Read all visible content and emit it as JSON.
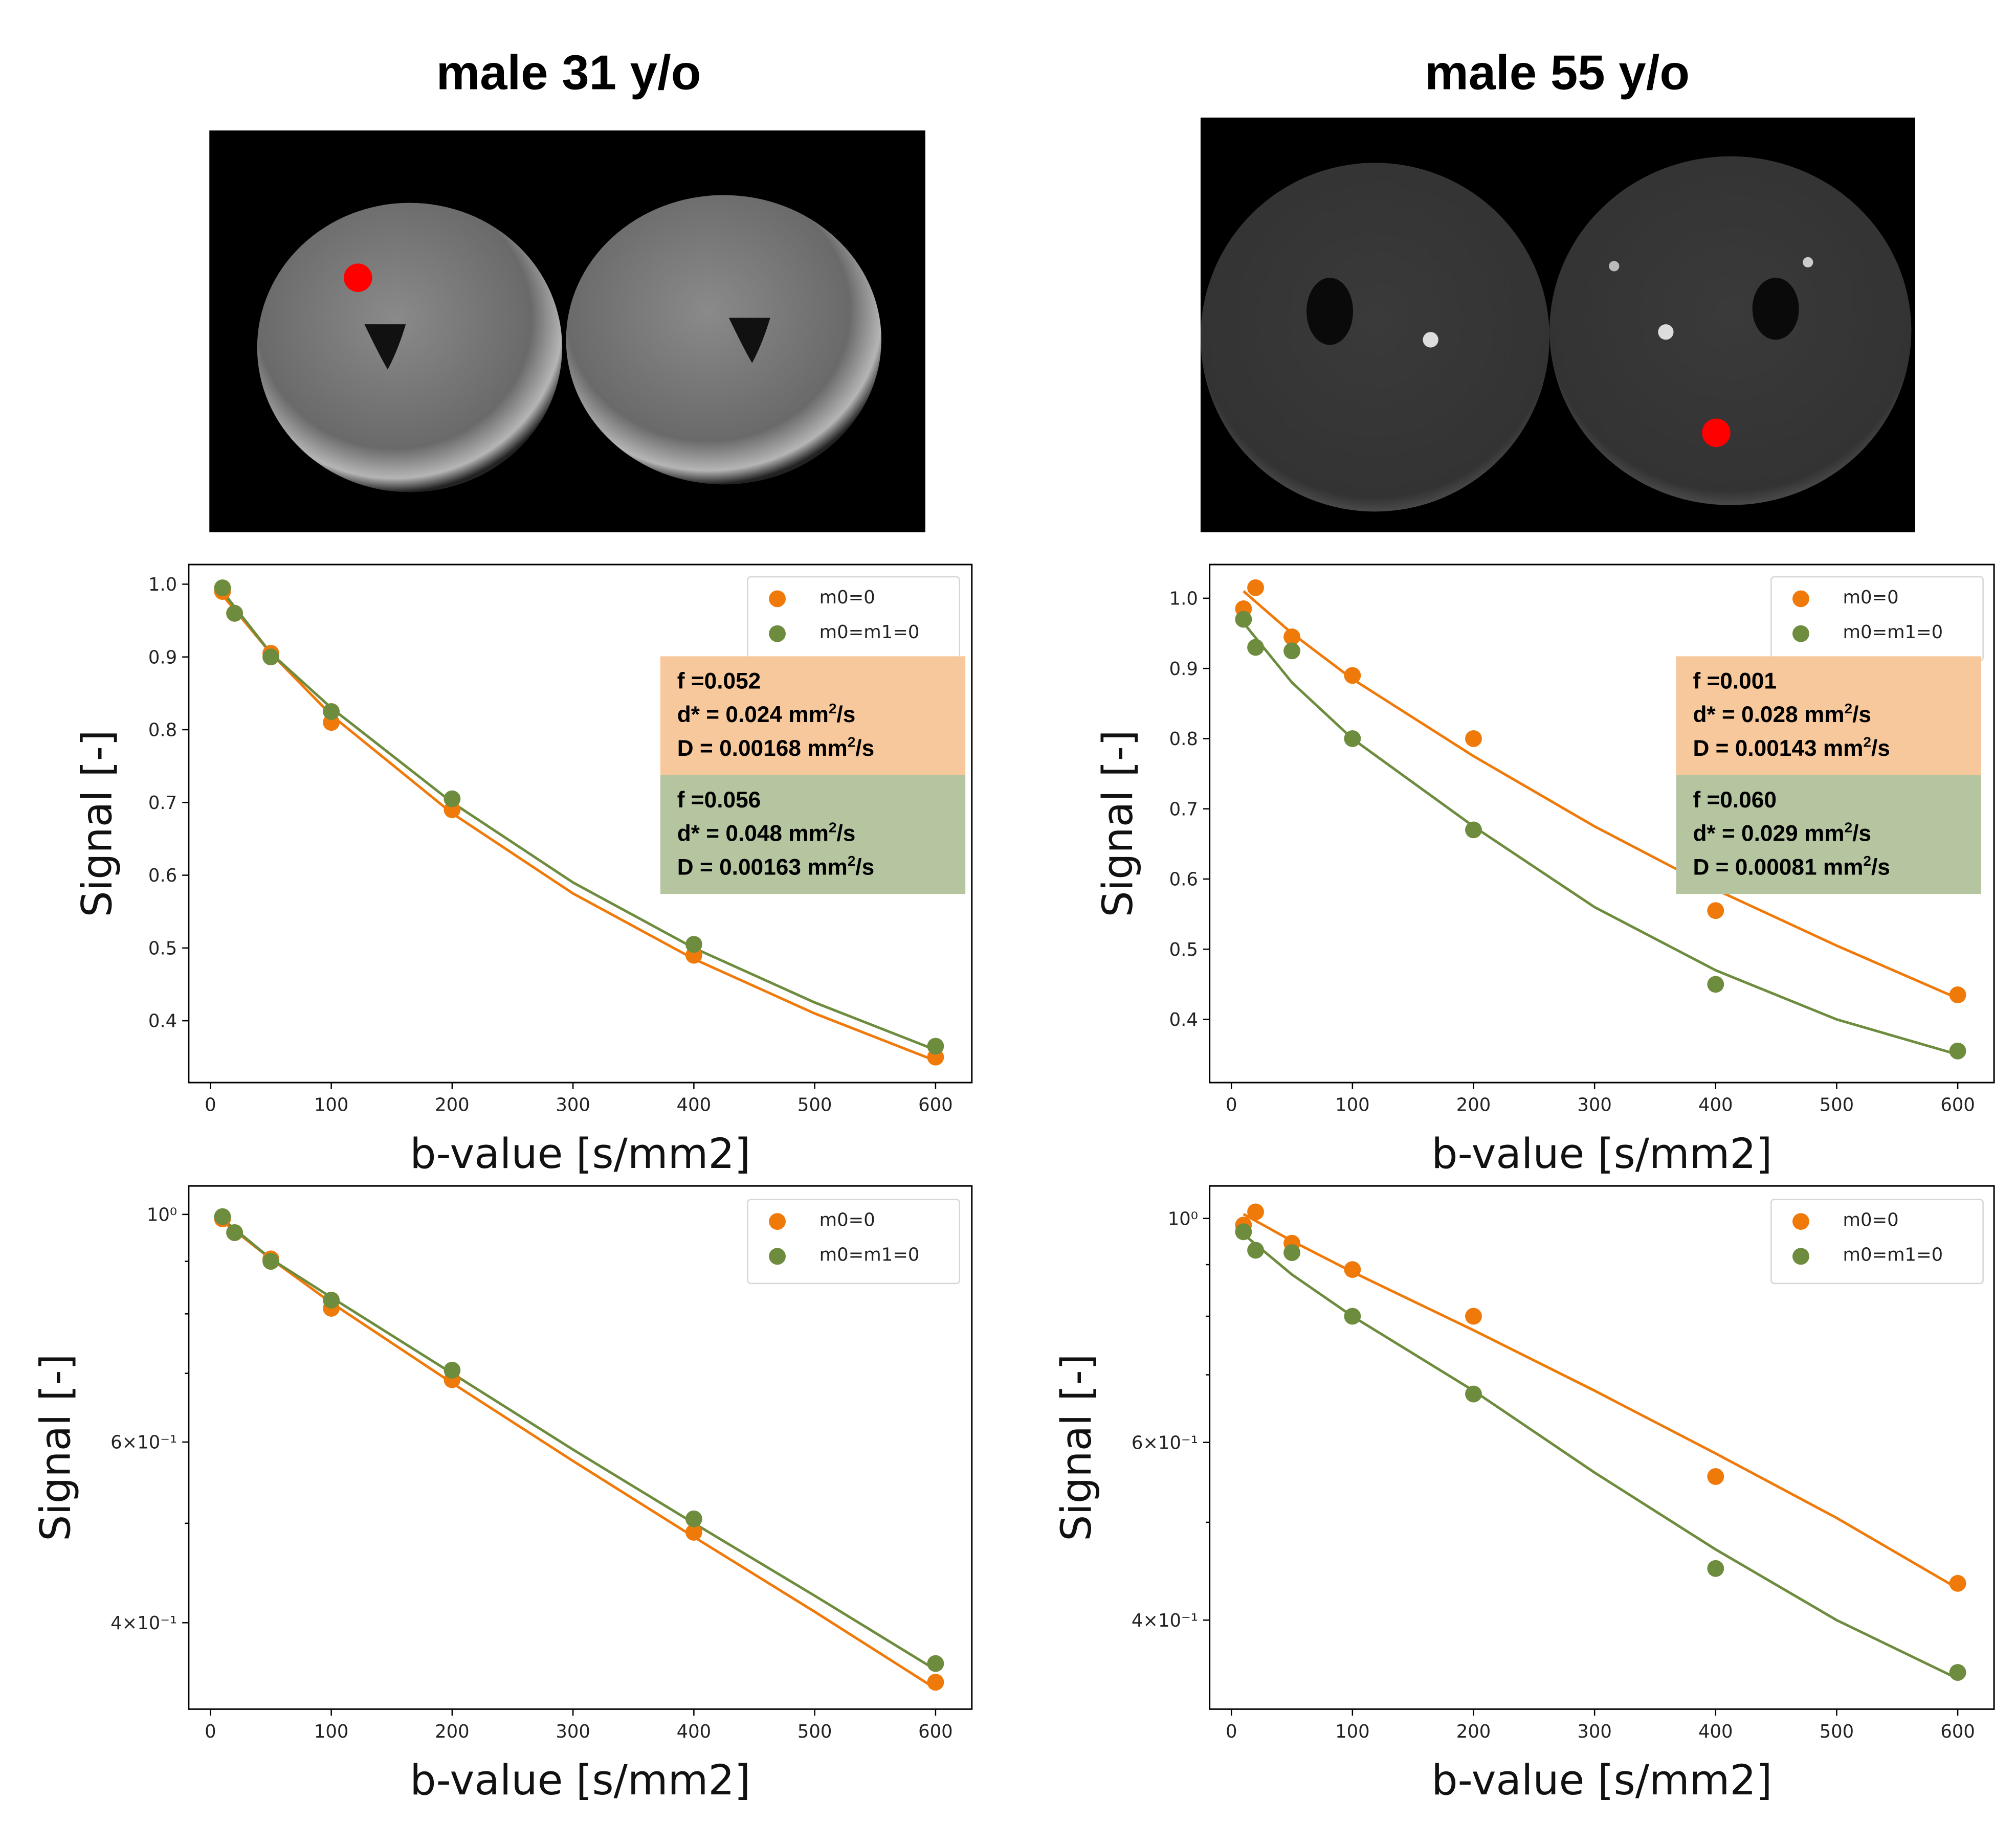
{
  "panels": [
    {
      "title": "male 31 y/o"
    },
    {
      "title": "male 55 y/o"
    }
  ],
  "legend": {
    "orange": "m0=0",
    "green": "m0=m1=0"
  },
  "colors": {
    "orange": "#ef7a0a",
    "green": "#6d8c3e",
    "orange_box": "#f7c89b",
    "green_box": "#b5c59f",
    "roi": "#ff0000"
  },
  "annotations": [
    {
      "orange": {
        "f": "f =0.052",
        "dstar": "d* = 0.024 mm",
        "D": "D = 0.00168 mm"
      },
      "green": {
        "f": "f =0.056",
        "dstar": "d* = 0.048 mm",
        "D": "D = 0.00163 mm"
      }
    },
    {
      "orange": {
        "f": "f =0.001",
        "dstar": "d* = 0.028 mm",
        "D": "D = 0.00143 mm"
      },
      "green": {
        "f": "f =0.060",
        "dstar": "d* = 0.029 mm",
        "D": "D = 0.00081 mm"
      }
    }
  ],
  "unit_sup": "2",
  "unit_tail": "/s",
  "chart_data": [
    {
      "type": "scatter",
      "scale": "linear",
      "xlabel": "b-value [s/mm2]",
      "ylabel": "Signal [-]",
      "xlim": [
        -18,
        630
      ],
      "ylim": [
        0.315,
        1.027
      ],
      "xticks": [
        0,
        100,
        200,
        300,
        400,
        500,
        600
      ],
      "yticks": [
        0.4,
        0.5,
        0.6,
        0.7,
        0.8,
        0.9,
        1.0
      ],
      "yticklabels": [
        "0.4",
        "0.5",
        "0.6",
        "0.7",
        "0.8",
        "0.9",
        "1.0"
      ],
      "legend": "top-right",
      "x": [
        10,
        20,
        50,
        100,
        200,
        400,
        600
      ],
      "series": [
        {
          "name": "m0=0",
          "color": "orange",
          "values": [
            0.99,
            0.96,
            0.905,
            0.81,
            0.69,
            0.49,
            0.35
          ],
          "fit_b": [
            10,
            50,
            100,
            200,
            300,
            400,
            500,
            600
          ],
          "fit": [
            0.985,
            0.905,
            0.82,
            0.685,
            0.575,
            0.485,
            0.41,
            0.345
          ]
        },
        {
          "name": "m0=m1=0",
          "color": "green",
          "values": [
            0.995,
            0.96,
            0.9,
            0.825,
            0.705,
            0.505,
            0.365
          ],
          "fit_b": [
            10,
            50,
            100,
            200,
            300,
            400,
            500,
            600
          ],
          "fit": [
            0.99,
            0.905,
            0.83,
            0.7,
            0.59,
            0.5,
            0.425,
            0.36
          ]
        }
      ]
    },
    {
      "type": "scatter",
      "scale": "linear",
      "xlabel": "b-value [s/mm2]",
      "ylabel": "Signal [-]",
      "xlim": [
        -18,
        630
      ],
      "ylim": [
        0.31,
        1.048
      ],
      "xticks": [
        0,
        100,
        200,
        300,
        400,
        500,
        600
      ],
      "yticks": [
        0.4,
        0.5,
        0.6,
        0.7,
        0.8,
        0.9,
        1.0
      ],
      "yticklabels": [
        "0.4",
        "0.5",
        "0.6",
        "0.7",
        "0.8",
        "0.9",
        "1.0"
      ],
      "legend": "top-right",
      "x": [
        10,
        20,
        50,
        100,
        200,
        400,
        600
      ],
      "series": [
        {
          "name": "m0=0",
          "color": "orange",
          "values": [
            0.985,
            1.015,
            0.945,
            0.89,
            0.8,
            0.555,
            0.435
          ],
          "fit_b": [
            10,
            50,
            100,
            200,
            300,
            400,
            500,
            600
          ],
          "fit": [
            1.01,
            0.95,
            0.885,
            0.775,
            0.675,
            0.585,
            0.505,
            0.43
          ]
        },
        {
          "name": "m0=m1=0",
          "color": "green",
          "values": [
            0.97,
            0.93,
            0.925,
            0.8,
            0.67,
            0.45,
            0.355
          ],
          "fit_b": [
            10,
            50,
            100,
            200,
            300,
            400,
            500,
            600
          ],
          "fit": [
            0.965,
            0.88,
            0.8,
            0.675,
            0.56,
            0.47,
            0.4,
            0.35
          ]
        }
      ]
    },
    {
      "type": "scatter",
      "scale": "log",
      "xlabel": "b-value [s/mm2]",
      "ylabel": "Signal [-]",
      "xlim": [
        -18,
        630
      ],
      "ylim": [
        0.3295,
        1.066
      ],
      "xticks": [
        0,
        100,
        200,
        300,
        400,
        500,
        600
      ],
      "yticks": [
        1.0,
        0.6,
        0.4
      ],
      "yticklabels": [
        "10⁰",
        "6×10⁻¹",
        "4×10⁻¹"
      ],
      "yminor": [
        0.5,
        0.7,
        0.8,
        0.9
      ],
      "legend": "top-right",
      "x": [
        10,
        20,
        50,
        100,
        200,
        400,
        600
      ],
      "series": [
        {
          "name": "m0=0",
          "color": "orange",
          "values": [
            0.99,
            0.96,
            0.905,
            0.81,
            0.69,
            0.49,
            0.35
          ],
          "fit_b": [
            10,
            50,
            100,
            200,
            300,
            400,
            500,
            600
          ],
          "fit": [
            0.985,
            0.905,
            0.82,
            0.685,
            0.575,
            0.485,
            0.41,
            0.345
          ]
        },
        {
          "name": "m0=m1=0",
          "color": "green",
          "values": [
            0.995,
            0.96,
            0.9,
            0.825,
            0.705,
            0.505,
            0.365
          ],
          "fit_b": [
            10,
            50,
            100,
            200,
            300,
            400,
            500,
            600
          ],
          "fit": [
            0.99,
            0.905,
            0.83,
            0.7,
            0.59,
            0.5,
            0.425,
            0.36
          ]
        }
      ]
    },
    {
      "type": "scatter",
      "scale": "log",
      "xlabel": "b-value [s/mm2]",
      "ylabel": "Signal [-]",
      "xlim": [
        -18,
        630
      ],
      "ylim": [
        0.3265,
        1.077
      ],
      "xticks": [
        0,
        100,
        200,
        300,
        400,
        500,
        600
      ],
      "yticks": [
        1.0,
        0.6,
        0.4
      ],
      "yticklabels": [
        "10⁰",
        "6×10⁻¹",
        "4×10⁻¹"
      ],
      "yminor": [
        0.5,
        0.7,
        0.8,
        0.9
      ],
      "legend": "top-right",
      "x": [
        10,
        20,
        50,
        100,
        200,
        400,
        600
      ],
      "series": [
        {
          "name": "m0=0",
          "color": "orange",
          "values": [
            0.985,
            1.015,
            0.945,
            0.89,
            0.8,
            0.555,
            0.435
          ],
          "fit_b": [
            10,
            50,
            100,
            200,
            300,
            400,
            500,
            600
          ],
          "fit": [
            1.01,
            0.95,
            0.885,
            0.775,
            0.675,
            0.585,
            0.505,
            0.43
          ]
        },
        {
          "name": "m0=m1=0",
          "color": "green",
          "values": [
            0.97,
            0.93,
            0.925,
            0.8,
            0.67,
            0.45,
            0.355
          ],
          "fit_b": [
            10,
            50,
            100,
            200,
            300,
            400,
            500,
            600
          ],
          "fit": [
            0.965,
            0.88,
            0.8,
            0.675,
            0.56,
            0.47,
            0.4,
            0.35
          ]
        }
      ]
    }
  ]
}
